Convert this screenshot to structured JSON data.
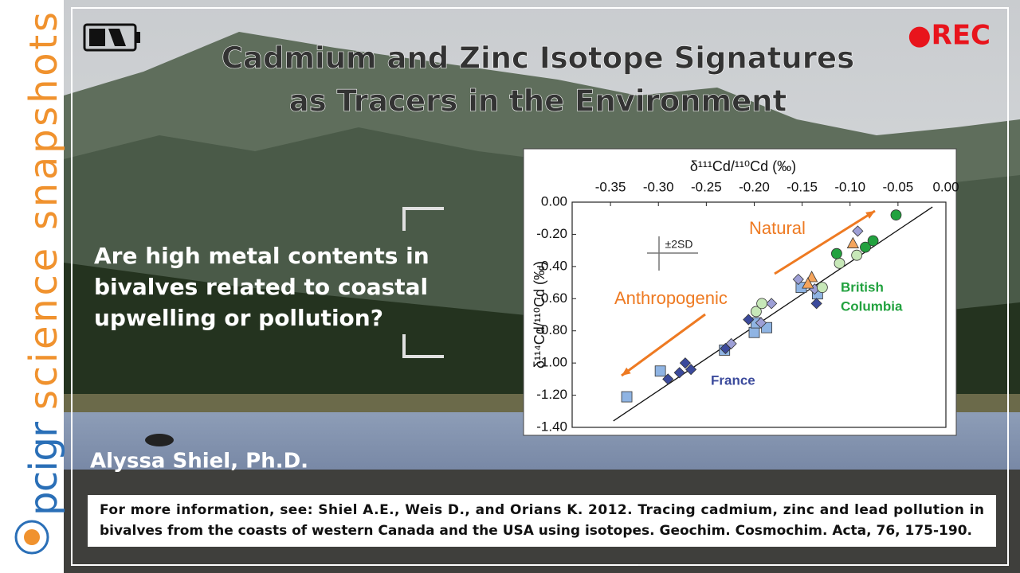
{
  "sidebar": {
    "brand": "pcigr",
    "tagline": "science snapshots"
  },
  "recording": "●REC",
  "title": [
    "Cadmium and Zinc Isotope Signatures",
    "as Tracers in the Environment"
  ],
  "question": [
    "Are high metal contents in",
    "bivalves related to coastal",
    "upwelling or pollution?"
  ],
  "author": "Alyssa Shiel, Ph.D.",
  "citation": [
    "For more information, see: Shiel A.E., Weis D., and Orians K. 2012. Tracing cadmium, zinc and lead pollution in",
    "bivalves from the coasts of western Canada and the USA using isotopes. Geochim. Cosmochim. Acta, 76, 175-190."
  ],
  "chart_data": {
    "type": "scatter",
    "xlabel": "δ¹¹¹Cd/¹¹⁰Cd (‰)",
    "ylabel": "δ¹¹⁴Cd/¹¹⁰Cd (‰)",
    "xlim": [
      -0.39,
      0.0
    ],
    "ylim": [
      -1.4,
      0.0
    ],
    "xticks": [
      -0.35,
      {
        "value": -0.3,
        "label": "-0.30"
      },
      -0.25,
      {
        "value": -0.2,
        "label": "-0.20"
      },
      -0.15,
      {
        "value": -0.1,
        "label": "-0.10"
      },
      -0.05,
      {
        "value": 0,
        "label": "0.00"
      }
    ],
    "yticks": [
      {
        "value": 0,
        "label": "0.00"
      },
      {
        "value": -0.2,
        "label": "-0.20"
      },
      {
        "value": -0.4,
        "label": "-0.40"
      },
      {
        "value": -0.6,
        "label": "-0.60"
      },
      {
        "value": -0.8,
        "label": "-0.80"
      },
      {
        "value": -1.0,
        "label": "-1.00"
      },
      {
        "value": -1.2,
        "label": "-1.20"
      },
      {
        "value": -1.4,
        "label": "-1.40"
      }
    ],
    "series": [
      {
        "marker": "square",
        "color": "#8fb4e3",
        "x": [
          -0.333,
          -0.298,
          -0.231,
          -0.2,
          -0.198,
          -0.187,
          -0.151,
          -0.134
        ],
        "values": [
          -1.21,
          -1.05,
          -0.92,
          -0.81,
          -0.75,
          -0.78,
          -0.53,
          -0.57
        ]
      },
      {
        "marker": "diamond",
        "color": "#3b4a9c",
        "x": [
          -0.29,
          -0.278,
          -0.272,
          -0.266,
          -0.23,
          -0.206,
          -0.135
        ],
        "values": [
          -1.1,
          -1.06,
          -1.0,
          -1.04,
          -0.91,
          -0.73,
          -0.63
        ]
      },
      {
        "marker": "diamond",
        "color": "#9d9fd6",
        "x": [
          -0.224,
          -0.193,
          -0.182,
          -0.154,
          -0.137,
          -0.092
        ],
        "values": [
          -0.88,
          -0.75,
          -0.63,
          -0.48,
          -0.54,
          -0.18
        ]
      },
      {
        "marker": "triangle",
        "color": "#f4a45c",
        "x": [
          -0.14,
          -0.144,
          -0.097
        ],
        "values": [
          -0.47,
          -0.51,
          -0.26
        ]
      },
      {
        "marker": "circle",
        "color": "#c7e8b8",
        "x": [
          -0.198,
          -0.192,
          -0.129,
          -0.111,
          -0.093
        ],
        "values": [
          -0.68,
          -0.63,
          -0.53,
          -0.38,
          -0.33
        ]
      },
      {
        "marker": "circle",
        "color": "#22a23f",
        "x": [
          -0.114,
          -0.084,
          -0.076,
          -0.052
        ],
        "values": [
          -0.32,
          -0.28,
          -0.24,
          -0.08
        ]
      }
    ],
    "reference_line": {
      "x": [
        -0.347,
        -0.014
      ],
      "values": [
        -1.36,
        -0.03
      ]
    },
    "annotations": {
      "natural": "Natural",
      "anthropogenic": "Anthropogenic",
      "france": "France",
      "bc": [
        "British",
        "Columbia"
      ],
      "error": "±2SD"
    }
  }
}
